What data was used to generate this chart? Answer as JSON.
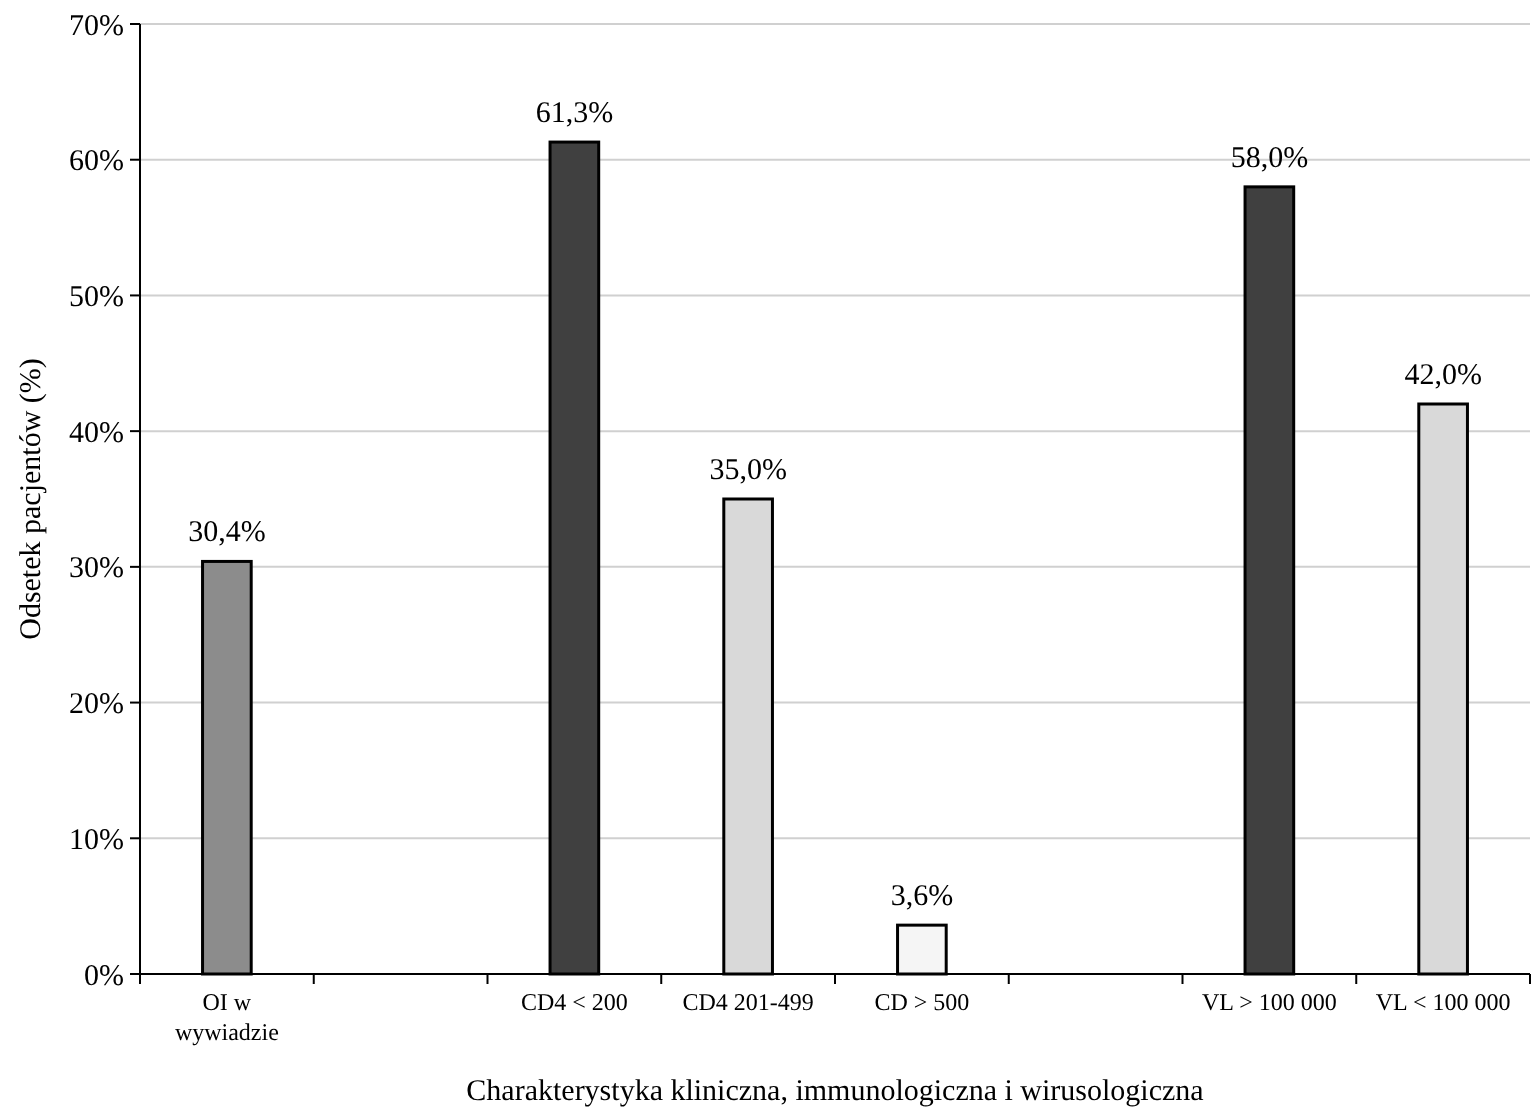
{
  "chart_data": {
    "type": "bar",
    "xlabel": "Charakterystyka kliniczna, immunologiczna i wirusologiczna",
    "ylabel": "Odsetek pacjentów (%)",
    "categories": [
      "OI w wywiadzie",
      null,
      "CD4 < 200",
      "CD4 201-499",
      "CD > 500",
      null,
      "VL > 100 000",
      "VL < 100 000"
    ],
    "values": [
      30.4,
      null,
      61.3,
      35.0,
      3.6,
      null,
      58.0,
      42.0
    ],
    "colors": [
      "#8c8c8c",
      null,
      "#404040",
      "#d9d9d9",
      "#f5f5f5",
      null,
      "#404040",
      "#d9d9d9"
    ],
    "value_labels": [
      "30,4%",
      null,
      "61,3%",
      "35,0%",
      "3,6%",
      null,
      "58,0%",
      "42,0%"
    ],
    "ylim": [
      0,
      70
    ],
    "yticks": [
      {
        "value": 0,
        "label": "0%"
      },
      {
        "value": 10,
        "label": "10%"
      },
      {
        "value": 20,
        "label": "20%"
      },
      {
        "value": 30,
        "label": "30%"
      },
      {
        "value": 40,
        "label": "40%"
      },
      {
        "value": 50,
        "label": "50%"
      },
      {
        "value": 60,
        "label": "60%"
      },
      {
        "value": 70,
        "label": "70%"
      }
    ],
    "grid": "y"
  }
}
